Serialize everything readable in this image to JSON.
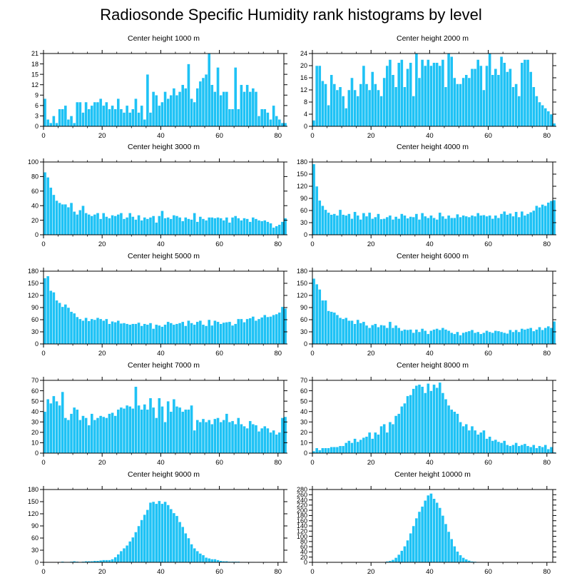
{
  "title": "Radiosonde Specific Humidity rank histograms by level",
  "colors": {
    "bar": "#1ec2f5",
    "bar_edge": "#ffffff",
    "axis": "#000000"
  },
  "chart_data": [
    {
      "type": "bar",
      "title": "Center height 1000 m",
      "xlim": [
        0,
        82
      ],
      "ylim": [
        0,
        21
      ],
      "xticks": [
        0,
        20,
        40,
        60,
        80
      ],
      "yticks": [
        0,
        3,
        6,
        9,
        12,
        15,
        18,
        21
      ],
      "values": [
        8,
        2,
        1,
        3,
        1,
        5,
        5,
        6,
        2,
        3,
        1,
        7,
        7,
        4,
        7,
        5,
        6,
        7,
        7,
        8,
        6,
        7,
        5,
        6,
        5,
        8,
        5,
        4,
        6,
        4,
        5,
        8,
        4,
        6,
        2,
        15,
        4,
        10,
        9,
        6,
        7,
        10,
        8,
        9,
        11,
        9,
        10,
        12,
        11,
        18,
        8,
        7,
        11,
        13,
        14,
        15,
        21,
        12,
        10,
        17,
        9,
        10,
        10,
        5,
        5,
        17,
        5,
        12,
        10,
        12,
        10,
        11,
        10,
        3,
        5,
        5,
        4,
        2,
        6,
        3,
        2,
        1,
        1
      ]
    },
    {
      "type": "bar",
      "title": "Center height 2000 m",
      "xlim": [
        0,
        82
      ],
      "ylim": [
        0,
        24
      ],
      "xticks": [
        0,
        20,
        40,
        60,
        80
      ],
      "yticks": [
        0,
        4,
        8,
        12,
        16,
        20,
        24
      ],
      "values": [
        2,
        20,
        20,
        15,
        14,
        7,
        17,
        14,
        12,
        13,
        10,
        6,
        12,
        16,
        12,
        10,
        14,
        20,
        14,
        12,
        18,
        14,
        12,
        10,
        16,
        20,
        22,
        17,
        13,
        21,
        22,
        13,
        19,
        21,
        10,
        24,
        16,
        22,
        20,
        22,
        20,
        21,
        21,
        20,
        22,
        13,
        24,
        23,
        16,
        14,
        14,
        16,
        17,
        16,
        19,
        19,
        22,
        20,
        12,
        20,
        24,
        17,
        19,
        17,
        23,
        21,
        18,
        19,
        13,
        14,
        10,
        21,
        22,
        22,
        18,
        13,
        10,
        8,
        7,
        6,
        5,
        4,
        1
      ]
    },
    {
      "type": "bar",
      "title": "Center height 3000 m",
      "xlim": [
        0,
        82
      ],
      "ylim": [
        0,
        100
      ],
      "xticks": [
        0,
        20,
        40,
        60,
        80
      ],
      "yticks": [
        0,
        20,
        40,
        60,
        80,
        100
      ],
      "values": [
        86,
        79,
        65,
        55,
        47,
        44,
        42,
        42,
        38,
        44,
        32,
        28,
        34,
        40,
        30,
        28,
        26,
        28,
        30,
        22,
        30,
        25,
        23,
        27,
        26,
        28,
        30,
        22,
        24,
        30,
        25,
        21,
        27,
        20,
        24,
        22,
        24,
        26,
        17,
        26,
        33,
        23,
        24,
        22,
        27,
        26,
        24,
        19,
        24,
        22,
        21,
        30,
        18,
        25,
        22,
        20,
        24,
        24,
        23,
        24,
        23,
        20,
        24,
        17,
        24,
        26,
        23,
        20,
        23,
        22,
        18,
        24,
        22,
        20,
        19,
        20,
        18,
        16,
        10,
        12,
        14,
        18,
        23
      ]
    },
    {
      "type": "bar",
      "title": "Center height 4000 m",
      "xlim": [
        0,
        82
      ],
      "ylim": [
        0,
        180
      ],
      "xticks": [
        0,
        20,
        40,
        60,
        80
      ],
      "yticks": [
        0,
        30,
        60,
        90,
        120,
        150,
        180
      ],
      "values": [
        175,
        120,
        85,
        72,
        62,
        55,
        50,
        52,
        48,
        62,
        50,
        48,
        52,
        40,
        57,
        48,
        38,
        54,
        46,
        55,
        40,
        44,
        52,
        39,
        40,
        44,
        48,
        38,
        45,
        40,
        52,
        48,
        41,
        45,
        44,
        52,
        38,
        54,
        46,
        42,
        48,
        42,
        38,
        55,
        46,
        40,
        48,
        42,
        42,
        51,
        44,
        48,
        46,
        44,
        48,
        46,
        54,
        48,
        49,
        46,
        48,
        40,
        48,
        42,
        52,
        58,
        50,
        53,
        46,
        57,
        44,
        58,
        48,
        52,
        56,
        60,
        72,
        68,
        75,
        72,
        80,
        84,
        86
      ]
    },
    {
      "type": "bar",
      "title": "Center height 5000 m",
      "xlim": [
        0,
        82
      ],
      "ylim": [
        0,
        180
      ],
      "xticks": [
        0,
        20,
        40,
        60,
        80
      ],
      "yticks": [
        0,
        30,
        60,
        90,
        120,
        150,
        180
      ],
      "values": [
        163,
        168,
        132,
        128,
        108,
        102,
        92,
        98,
        90,
        80,
        76,
        67,
        62,
        58,
        65,
        57,
        62,
        60,
        65,
        62,
        58,
        62,
        50,
        56,
        54,
        58,
        51,
        52,
        50,
        48,
        50,
        50,
        53,
        45,
        50,
        48,
        52,
        38,
        48,
        46,
        43,
        48,
        55,
        52,
        48,
        50,
        52,
        55,
        45,
        58,
        52,
        48,
        55,
        58,
        48,
        45,
        60,
        46,
        58,
        55,
        50,
        53,
        54,
        55,
        46,
        50,
        62,
        62,
        54,
        62,
        64,
        68,
        58,
        62,
        66,
        72,
        67,
        68,
        72,
        74,
        78,
        92,
        88
      ]
    },
    {
      "type": "bar",
      "title": "Center height 6000 m",
      "xlim": [
        0,
        82
      ],
      "ylim": [
        0,
        180
      ],
      "xticks": [
        0,
        20,
        40,
        60,
        80
      ],
      "yticks": [
        0,
        30,
        60,
        90,
        120,
        150,
        180
      ],
      "values": [
        162,
        148,
        135,
        108,
        108,
        82,
        80,
        78,
        72,
        65,
        62,
        65,
        58,
        58,
        50,
        60,
        52,
        55,
        46,
        40,
        47,
        50,
        42,
        47,
        46,
        40,
        55,
        40,
        46,
        40,
        33,
        36,
        35,
        36,
        28,
        36,
        30,
        38,
        33,
        25,
        33,
        36,
        38,
        35,
        40,
        36,
        33,
        28,
        25,
        30,
        22,
        28,
        30,
        32,
        35,
        28,
        30,
        25,
        28,
        33,
        30,
        28,
        33,
        32,
        30,
        28,
        26,
        35,
        30,
        35,
        30,
        38,
        36,
        38,
        40,
        32,
        36,
        42,
        35,
        40,
        44,
        40,
        56
      ]
    },
    {
      "type": "bar",
      "title": "Center height 7000 m",
      "xlim": [
        0,
        82
      ],
      "ylim": [
        0,
        70
      ],
      "xticks": [
        0,
        20,
        40,
        60,
        80
      ],
      "yticks": [
        0,
        10,
        20,
        30,
        40,
        50,
        60,
        70
      ],
      "values": [
        40,
        52,
        48,
        55,
        50,
        46,
        59,
        34,
        32,
        38,
        44,
        42,
        32,
        36,
        34,
        27,
        38,
        32,
        34,
        36,
        35,
        34,
        38,
        39,
        36,
        42,
        44,
        43,
        46,
        45,
        43,
        64,
        46,
        42,
        47,
        42,
        53,
        44,
        34,
        53,
        45,
        30,
        50,
        40,
        52,
        45,
        44,
        40,
        42,
        42,
        46,
        22,
        32,
        30,
        33,
        30,
        32,
        28,
        33,
        34,
        30,
        32,
        38,
        30,
        31,
        28,
        34,
        28,
        26,
        24,
        31,
        28,
        27,
        21,
        24,
        26,
        24,
        20,
        22,
        18,
        20,
        34,
        35
      ]
    },
    {
      "type": "bar",
      "title": "Center height 8000 m",
      "xlim": [
        0,
        82
      ],
      "ylim": [
        0,
        70
      ],
      "xticks": [
        0,
        20,
        40,
        60,
        80
      ],
      "yticks": [
        0,
        10,
        20,
        30,
        40,
        50,
        60,
        70
      ],
      "values": [
        2,
        5,
        3,
        5,
        5,
        5,
        6,
        6,
        6,
        7,
        7,
        10,
        12,
        10,
        14,
        11,
        13,
        15,
        16,
        20,
        14,
        20,
        18,
        26,
        28,
        20,
        30,
        28,
        36,
        38,
        45,
        48,
        55,
        56,
        62,
        65,
        66,
        64,
        58,
        67,
        60,
        66,
        63,
        68,
        58,
        52,
        46,
        42,
        40,
        38,
        30,
        26,
        28,
        22,
        26,
        22,
        18,
        20,
        22,
        14,
        16,
        12,
        13,
        11,
        10,
        12,
        8,
        7,
        8,
        10,
        7,
        8,
        9,
        7,
        6,
        8,
        5,
        7,
        6,
        8,
        4,
        6,
        1
      ]
    },
    {
      "type": "bar",
      "title": "Center height 9000 m",
      "xlim": [
        0,
        82
      ],
      "ylim": [
        0,
        180
      ],
      "xticks": [
        0,
        20,
        40,
        60,
        80
      ],
      "yticks": [
        0,
        30,
        60,
        90,
        120,
        150,
        180
      ],
      "values": [
        0,
        0,
        0,
        0,
        0,
        1,
        2,
        1,
        1,
        2,
        3,
        2,
        1,
        2,
        3,
        3,
        3,
        4,
        4,
        5,
        6,
        6,
        6,
        8,
        13,
        20,
        28,
        35,
        42,
        52,
        62,
        75,
        90,
        105,
        118,
        130,
        148,
        150,
        145,
        152,
        145,
        150,
        142,
        132,
        122,
        115,
        100,
        88,
        72,
        60,
        45,
        35,
        28,
        22,
        18,
        12,
        10,
        8,
        8,
        6,
        4,
        3,
        3,
        2,
        2,
        2,
        2,
        1,
        1,
        1,
        1,
        1,
        0,
        1,
        0,
        1,
        0,
        0,
        0,
        0,
        0,
        0,
        0
      ]
    },
    {
      "type": "bar",
      "title": "Center height 10000 m",
      "xlim": [
        0,
        82
      ],
      "ylim": [
        0,
        280
      ],
      "xticks": [
        0,
        20,
        40,
        60,
        80
      ],
      "yticks": [
        0,
        20,
        40,
        60,
        80,
        100,
        120,
        140,
        160,
        180,
        200,
        220,
        240,
        260,
        280
      ],
      "values": [
        0,
        0,
        0,
        0,
        0,
        0,
        0,
        0,
        0,
        0,
        0,
        0,
        0,
        0,
        0,
        0,
        0,
        0,
        0,
        0,
        0,
        0,
        0,
        1,
        2,
        4,
        6,
        10,
        18,
        30,
        45,
        62,
        85,
        112,
        140,
        170,
        195,
        215,
        238,
        258,
        265,
        245,
        230,
        210,
        180,
        148,
        118,
        90,
        62,
        42,
        28,
        18,
        12,
        7,
        4,
        3,
        2,
        1,
        1,
        1,
        0,
        0,
        0,
        0,
        0,
        0,
        0,
        0,
        0,
        0,
        0,
        0,
        0,
        0,
        0,
        0,
        0,
        0,
        0,
        0,
        0,
        0,
        0
      ]
    }
  ]
}
